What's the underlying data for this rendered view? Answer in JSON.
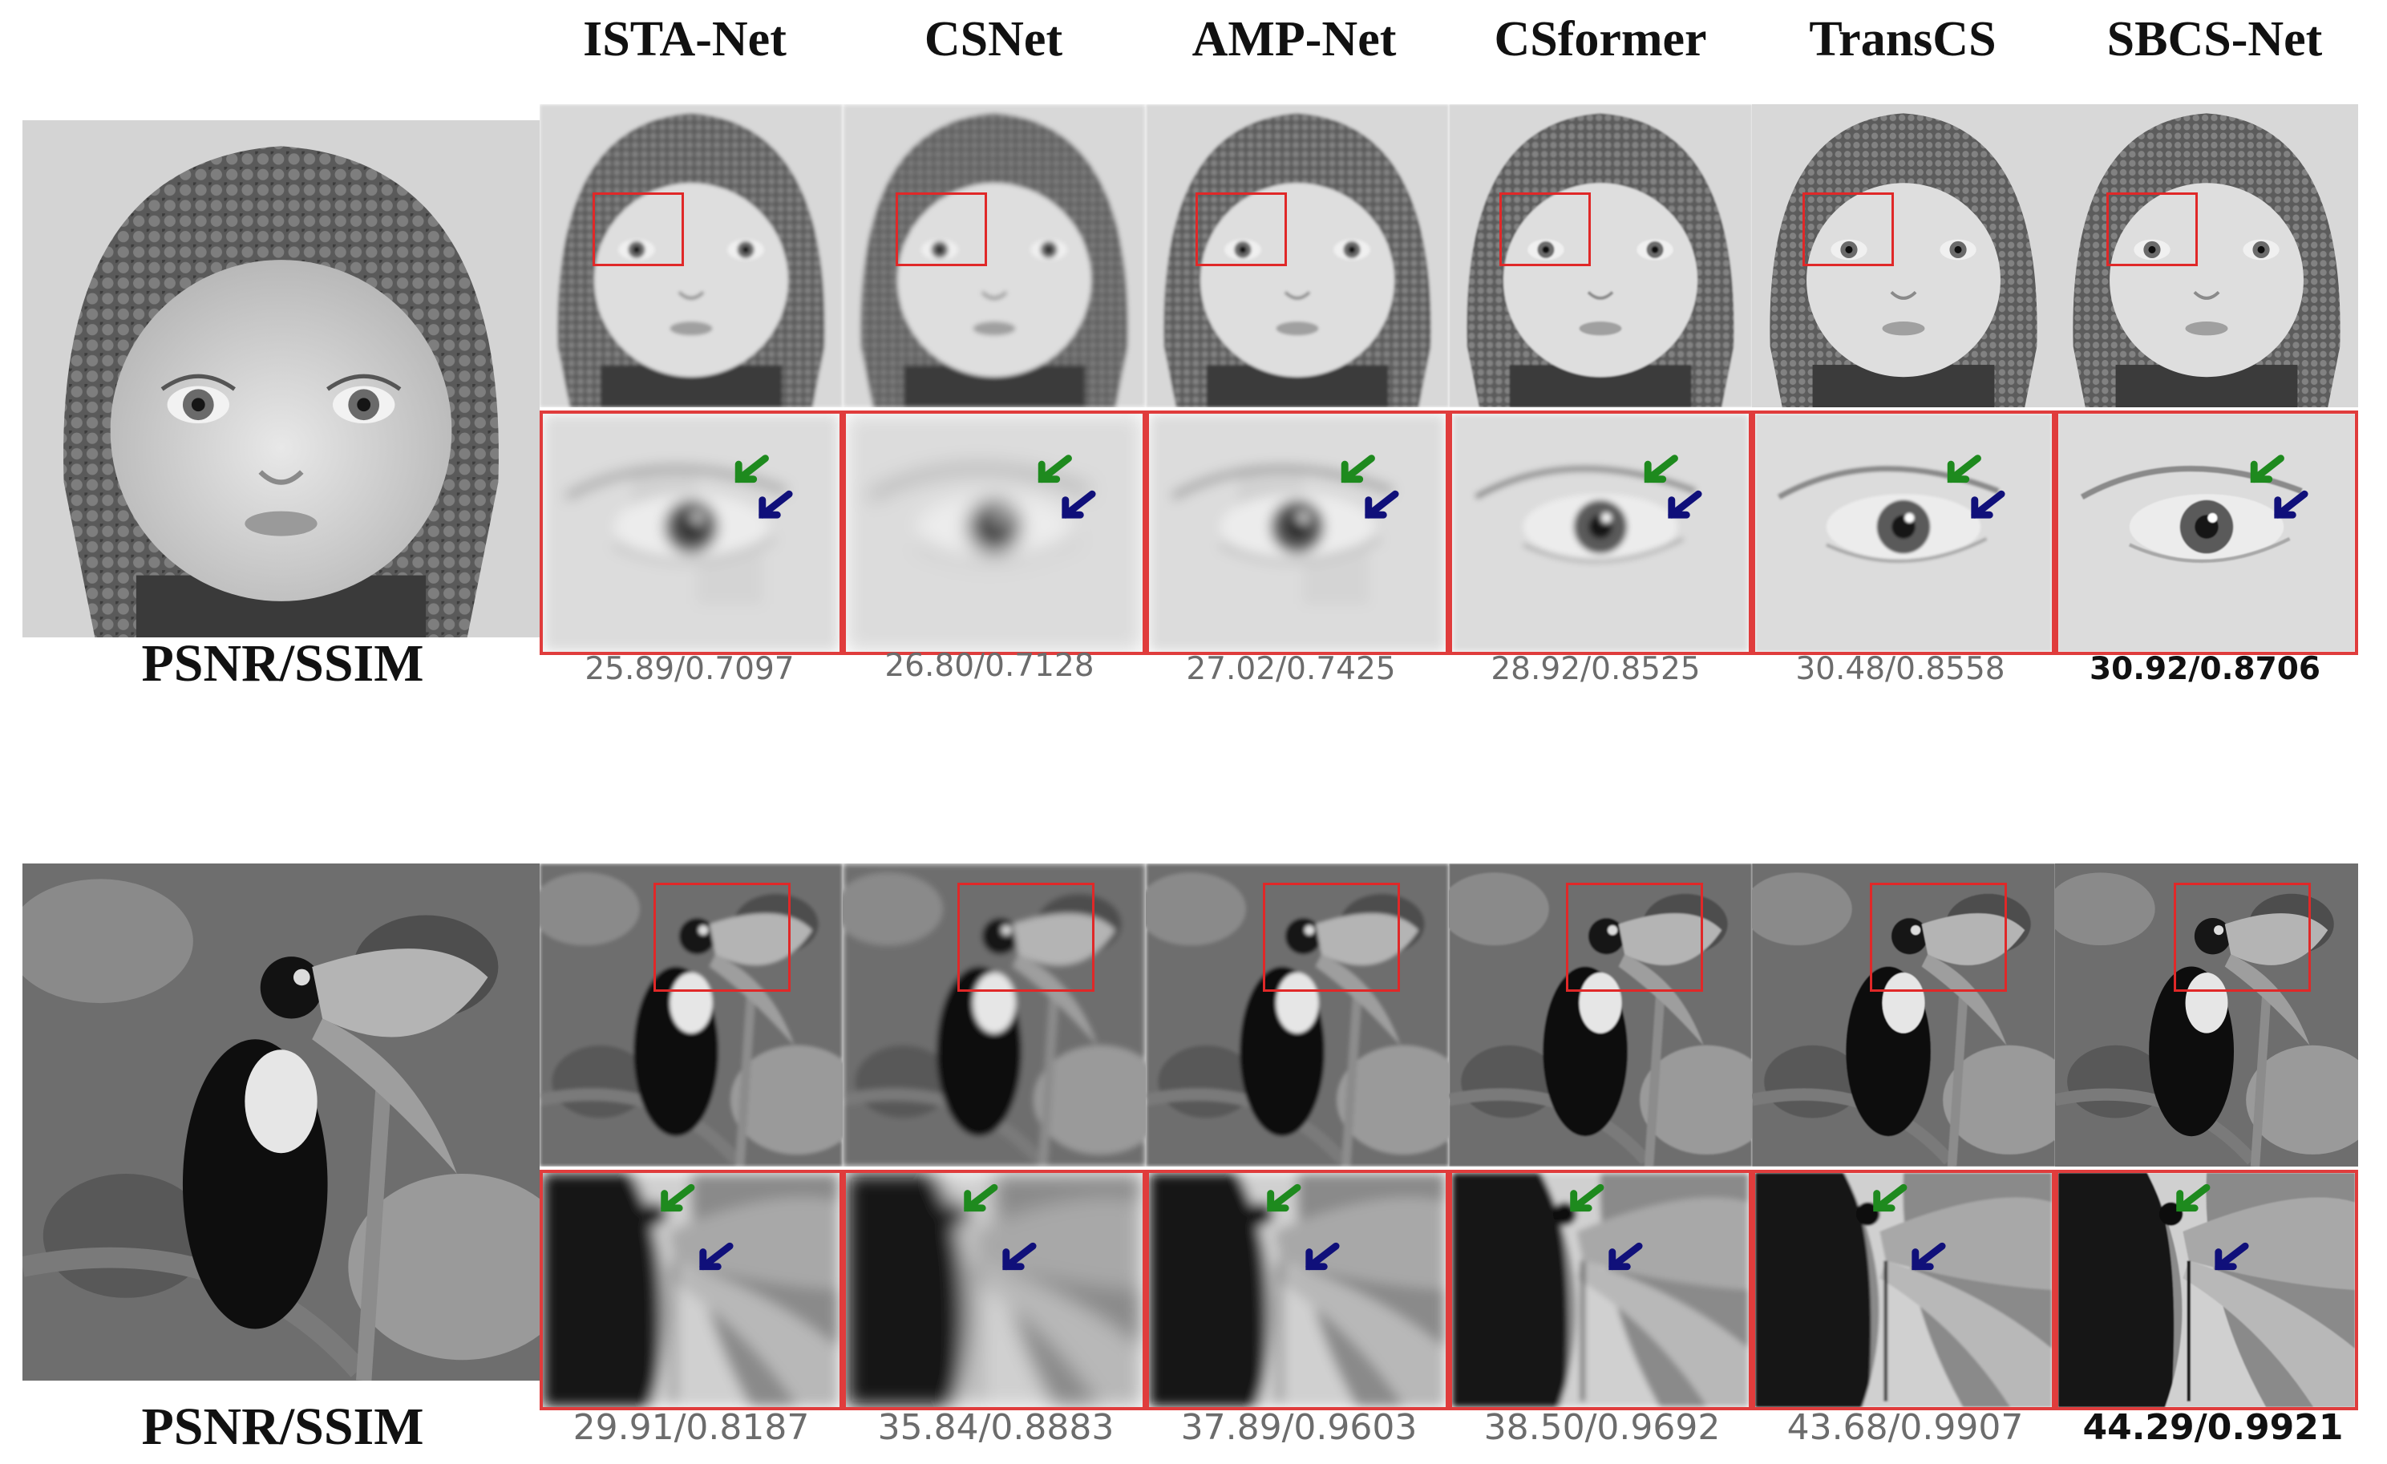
{
  "methods": [
    "ISTA-Net",
    "CSNet",
    "AMP-Net",
    "CSformer",
    "TransCS",
    "SBCS-Net"
  ],
  "rows": [
    {
      "label": "PSNR/SSIM",
      "subject": "baby",
      "metrics": [
        "25.89/0.7097",
        "26.80/0.7128",
        "27.02/0.7425",
        "28.92/0.8525",
        "30.48/0.8558",
        "30.92/0.8706"
      ]
    },
    {
      "label": "PSNR/SSIM",
      "subject": "toucan",
      "metrics": [
        "29.91/0.8187",
        "35.84/0.8883",
        "37.89/0.9603",
        "38.50/0.9692",
        "43.68/0.9907",
        "44.29/0.9921"
      ]
    }
  ],
  "colors": {
    "roi_box": "#e02828",
    "crop_border": "#e03c3c",
    "arrow_green": "#1e8a1e",
    "arrow_blue": "#10107a"
  },
  "blur_levels": [
    2.2,
    3.2,
    2.0,
    1.0,
    0.4,
    0.2
  ]
}
